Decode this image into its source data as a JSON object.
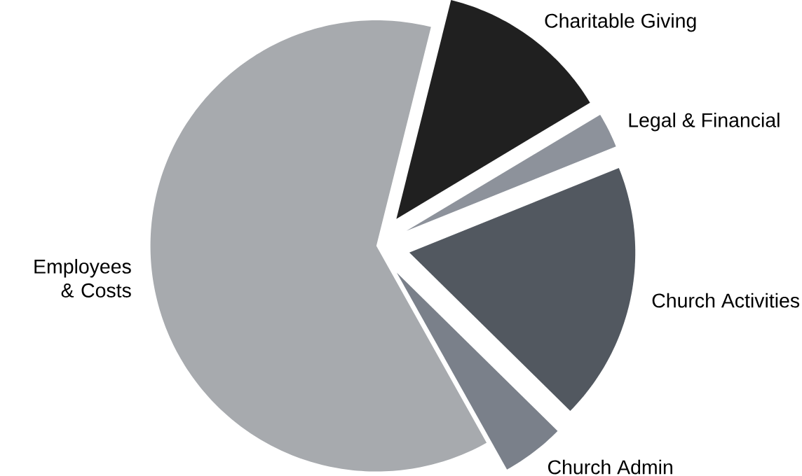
{
  "chart_data": {
    "type": "pie",
    "categories": [
      "Charitable Giving",
      "Legal & Financial",
      "Church Activities",
      "Church Admin",
      "Employees & Costs"
    ],
    "values": [
      12.5,
      2.5,
      18.5,
      4.5,
      62
    ],
    "colors": [
      "#202020",
      "#8d929b",
      "#525860",
      "#7a808a",
      "#a7aaae"
    ]
  }
}
